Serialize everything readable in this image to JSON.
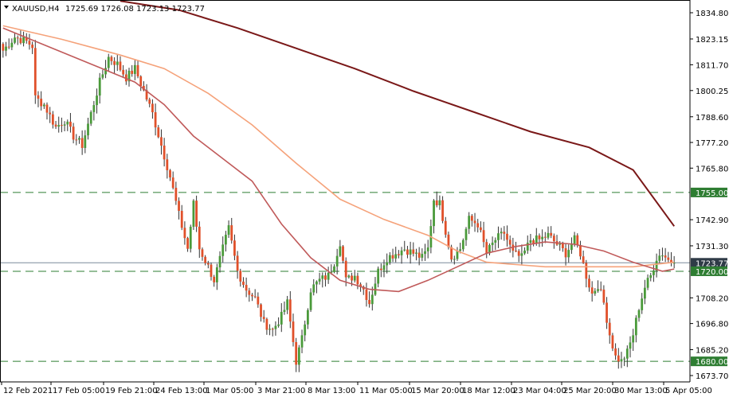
{
  "window": {
    "symbol_label": "XAUUSD,H4",
    "ohlc_readout": "1725.69 1726.08 1723.13 1723.77",
    "menu_icon": "triangle-down-icon"
  },
  "colors": {
    "background": "#ffffff",
    "frame": "#000000",
    "bull": "#4a9a3a",
    "bear": "#e0502a",
    "wick": "#333333",
    "ma_fast": "#c05a5a",
    "ma_mid": "#f5a27a",
    "ma_slow": "#7a1818",
    "hline": "#2e7d32",
    "current_line": "#7a8a9a",
    "current_label_bg": "#2f3b47",
    "level_label_bg": "#2e7d32",
    "label_text": "#ffffff"
  },
  "chart_data": {
    "type": "candlestick",
    "symbol": "XAUUSD",
    "timeframe": "H4",
    "ylim": [
      1672.0,
      1840.0
    ],
    "grid": false,
    "price_ticks": [
      "1834.80",
      "1823.15",
      "1811.70",
      "1800.25",
      "1788.60",
      "1777.20",
      "1765.80",
      "1755.00",
      "1742.90",
      "1731.30",
      "1723.77",
      "1720.00",
      "1708.20",
      "1696.80",
      "1685.20",
      "1680.00",
      "1673.70"
    ],
    "price_tick_values": [
      1834.8,
      1823.15,
      1811.7,
      1800.25,
      1788.6,
      1777.2,
      1765.8,
      1755.0,
      1742.9,
      1731.3,
      1723.77,
      1720.0,
      1708.2,
      1696.8,
      1685.2,
      1680.0,
      1673.7
    ],
    "time_labels": [
      "12 Feb 2021",
      "17 Feb 05:00",
      "19 Feb 21:00",
      "24 Feb 13:00",
      "1 Mar 05:00",
      "3 Mar 21:00",
      "8 Mar 13:00",
      "11 Mar 05:00",
      "15 Mar 20:00",
      "18 Mar 12:00",
      "23 Mar 04:00",
      "25 Mar 20:00",
      "30 Mar 13:00",
      "5 Apr 05:00"
    ],
    "horizontal_levels": [
      {
        "price": 1755.0,
        "label": "1755.00",
        "style": "dashed"
      },
      {
        "price": 1720.0,
        "label": "1720.00",
        "style": "dashed"
      },
      {
        "price": 1680.0,
        "label": "1680.00",
        "style": "dashed"
      }
    ],
    "current_price": {
      "price": 1723.77,
      "label": "1723.77"
    },
    "anchors": [
      [
        0,
        1818
      ],
      [
        4,
        1824
      ],
      [
        8,
        1822
      ],
      [
        10,
        1820
      ],
      [
        11,
        1797
      ],
      [
        14,
        1794
      ],
      [
        18,
        1784
      ],
      [
        21,
        1787
      ],
      [
        24,
        1780
      ],
      [
        27,
        1776
      ],
      [
        30,
        1790
      ],
      [
        33,
        1804
      ],
      [
        36,
        1815
      ],
      [
        39,
        1812
      ],
      [
        42,
        1806
      ],
      [
        45,
        1810
      ],
      [
        48,
        1800
      ],
      [
        51,
        1790
      ],
      [
        54,
        1776
      ],
      [
        57,
        1762
      ],
      [
        60,
        1745
      ],
      [
        63,
        1730
      ],
      [
        65,
        1750
      ],
      [
        67,
        1730
      ],
      [
        70,
        1722
      ],
      [
        72,
        1716
      ],
      [
        75,
        1730
      ],
      [
        77,
        1739
      ],
      [
        80,
        1720
      ],
      [
        83,
        1712
      ],
      [
        86,
        1708
      ],
      [
        89,
        1697
      ],
      [
        92,
        1694
      ],
      [
        95,
        1700
      ],
      [
        97,
        1706
      ],
      [
        100,
        1680
      ],
      [
        102,
        1690
      ],
      [
        105,
        1712
      ],
      [
        108,
        1716
      ],
      [
        111,
        1718
      ],
      [
        113,
        1724
      ],
      [
        115,
        1733
      ],
      [
        117,
        1716
      ],
      [
        120,
        1718
      ],
      [
        123,
        1712
      ],
      [
        125,
        1706
      ],
      [
        128,
        1720
      ],
      [
        131,
        1726
      ],
      [
        134,
        1728
      ],
      [
        137,
        1730
      ],
      [
        140,
        1728
      ],
      [
        143,
        1726
      ],
      [
        145,
        1730
      ],
      [
        147,
        1752
      ],
      [
        149,
        1750
      ],
      [
        151,
        1738
      ],
      [
        153,
        1726
      ],
      [
        156,
        1730
      ],
      [
        159,
        1743
      ],
      [
        162,
        1741
      ],
      [
        165,
        1728
      ],
      [
        168,
        1734
      ],
      [
        171,
        1737
      ],
      [
        174,
        1728
      ],
      [
        177,
        1726
      ],
      [
        180,
        1734
      ],
      [
        183,
        1734
      ],
      [
        186,
        1736
      ],
      [
        189,
        1732
      ],
      [
        192,
        1728
      ],
      [
        195,
        1734
      ],
      [
        197,
        1728
      ],
      [
        199,
        1718
      ],
      [
        201,
        1710
      ],
      [
        203,
        1714
      ],
      [
        205,
        1706
      ],
      [
        207,
        1692
      ],
      [
        209,
        1682
      ],
      [
        211,
        1680
      ],
      [
        213,
        1684
      ],
      [
        215,
        1692
      ],
      [
        217,
        1704
      ],
      [
        219,
        1713
      ],
      [
        221,
        1718
      ],
      [
        223,
        1726
      ],
      [
        225,
        1728
      ],
      [
        227,
        1725
      ],
      [
        229,
        1723.77
      ]
    ],
    "ma_fast": [
      [
        0,
        1828
      ],
      [
        15,
        1820
      ],
      [
        30,
        1812
      ],
      [
        45,
        1804
      ],
      [
        55,
        1794
      ],
      [
        65,
        1780
      ],
      [
        75,
        1770
      ],
      [
        85,
        1760
      ],
      [
        95,
        1741
      ],
      [
        105,
        1726
      ],
      [
        115,
        1716
      ],
      [
        125,
        1712
      ],
      [
        135,
        1711
      ],
      [
        145,
        1716
      ],
      [
        155,
        1722
      ],
      [
        165,
        1728
      ],
      [
        175,
        1731
      ],
      [
        185,
        1733
      ],
      [
        195,
        1732
      ],
      [
        205,
        1729
      ],
      [
        215,
        1724
      ],
      [
        225,
        1720
      ],
      [
        229,
        1721
      ]
    ],
    "ma_mid": [
      [
        0,
        1829
      ],
      [
        20,
        1823
      ],
      [
        40,
        1816
      ],
      [
        55,
        1810
      ],
      [
        70,
        1799
      ],
      [
        85,
        1785
      ],
      [
        100,
        1768
      ],
      [
        115,
        1752
      ],
      [
        130,
        1743
      ],
      [
        145,
        1736
      ],
      [
        155,
        1729
      ],
      [
        165,
        1724
      ],
      [
        175,
        1723
      ],
      [
        185,
        1722
      ],
      [
        195,
        1722
      ],
      [
        205,
        1722
      ],
      [
        215,
        1722
      ],
      [
        229,
        1724
      ]
    ],
    "ma_slow": [
      [
        40,
        1840
      ],
      [
        60,
        1836
      ],
      [
        80,
        1828
      ],
      [
        100,
        1819
      ],
      [
        120,
        1810
      ],
      [
        140,
        1800
      ],
      [
        160,
        1791
      ],
      [
        180,
        1782
      ],
      [
        200,
        1775
      ],
      [
        215,
        1765
      ],
      [
        229,
        1740
      ]
    ]
  }
}
